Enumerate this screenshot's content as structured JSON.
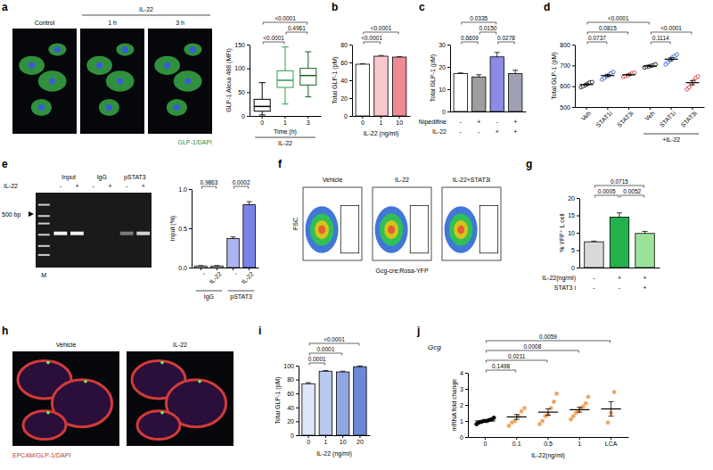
{
  "chart_data": [
    {
      "type": "box",
      "categories": [
        "0",
        "1",
        "3"
      ],
      "x_label": "Time (h)",
      "y_label": "GLP-1 Alexa 488 (MFI)",
      "group_labels": [
        "IL-22"
      ],
      "boxes": [
        {
          "min": 2,
          "q1": 10,
          "median": 20,
          "q3": 35,
          "max": 70
        },
        {
          "min": 25,
          "q1": 60,
          "median": 75,
          "q3": 95,
          "max": 145
        },
        {
          "min": 40,
          "q1": 65,
          "median": 85,
          "q3": 100,
          "max": 135
        }
      ],
      "colors": [
        "#000000",
        "#2e9e4f",
        "#1b5e20"
      ],
      "ylim": [
        0,
        150
      ],
      "yticks": [
        0,
        50,
        100,
        150
      ],
      "annotations": [
        "<0.0001",
        "<0.0001",
        "0.4961"
      ]
    },
    {
      "panel": "b",
      "type": "bar",
      "categories": [
        "0",
        "1",
        "10"
      ],
      "values": [
        58,
        67,
        66
      ],
      "errors": [
        0.5,
        0.8,
        0.6
      ],
      "colors": [
        "#ffffff",
        "#f8c8cc",
        "#ee8a92"
      ],
      "x_label": "IL-22 (ng/ml)",
      "y_label": "Total GLP-1 (pM)",
      "ylim": [
        0,
        80
      ],
      "yticks": [
        0,
        20,
        40,
        60,
        80
      ],
      "annotations": [
        "<0.0001",
        "<0.0001"
      ]
    },
    {
      "panel": "c",
      "type": "bar",
      "categories": [
        null,
        null,
        null,
        null
      ],
      "condition_rows": [
        {
          "label": "Nipedifine",
          "values": [
            "-",
            "+",
            "-",
            "+"
          ]
        },
        {
          "label": "IL-22",
          "values": [
            "-",
            "-",
            "+",
            "+"
          ]
        }
      ],
      "values": [
        17,
        15.5,
        24.5,
        17
      ],
      "errors": [
        0.3,
        1.0,
        2.0,
        1.5
      ],
      "colors": [
        "#ffffff",
        "#9e9e9e",
        "#8c8ce6",
        "#a0a0b4"
      ],
      "y_label": "Total GLP-1 (pM)",
      "ylim": [
        0,
        30
      ],
      "yticks": [
        0,
        10,
        20,
        30
      ],
      "annotations": [
        "0.6609",
        "0.0278",
        "0.0150",
        "0.0335"
      ]
    },
    {
      "panel": "d",
      "type": "dot",
      "marker": "open",
      "categories": [
        "Veh",
        "STAT1i",
        "STAT3i",
        "Veh",
        "STAT1i",
        "STAT3i"
      ],
      "group_labels": [
        "+IL-22"
      ],
      "values": [
        608,
        651,
        655,
        697,
        730,
        617
      ],
      "errors": [
        4,
        5,
        3,
        2,
        7,
        10
      ],
      "points": [
        [
          595,
          600,
          605,
          612,
          618,
          620
        ],
        [
          632,
          640,
          648,
          655,
          662,
          668
        ],
        [
          645,
          648,
          652,
          658,
          662,
          665
        ],
        [
          690,
          693,
          695,
          698,
          701,
          705
        ],
        [
          705,
          715,
          725,
          738,
          745,
          752
        ],
        [
          585,
          595,
          610,
          625,
          640,
          647
        ]
      ],
      "colors": [
        "#000000",
        "#1f4fd1",
        "#d62728",
        "#000000",
        "#1f4fd1",
        "#d62728"
      ],
      "y_label": "Total GLP-1 (pM)",
      "ylim": [
        500,
        800
      ],
      "yticks": [
        500,
        600,
        700,
        800
      ],
      "annotations": [
        "0.0737",
        "0.0815",
        "<0.0001",
        "0.1114",
        "<0.0001"
      ]
    },
    {
      "type": "bar",
      "categories": [
        "-",
        "IL-22",
        "-",
        "IL-22"
      ],
      "group_labels": [
        "IgG",
        "pSTAT3"
      ],
      "values": [
        0.02,
        0.02,
        0.37,
        0.8
      ],
      "errors": [
        0.005,
        0.005,
        0.02,
        0.04
      ],
      "colors": [
        "#ffffff",
        "#ffffff",
        "#aeb4f2",
        "#7b83e8"
      ],
      "y_label": "Input (%)",
      "ylim": [
        0,
        1
      ],
      "yticks": [
        {
          "value": 0,
          "label": "0.0"
        },
        {
          "value": 0.5,
          "label": "0.5"
        },
        {
          "value": 1,
          "label": "1.0"
        }
      ],
      "annotations": [
        "0.9863",
        "0.0002"
      ]
    },
    {
      "panel": "g",
      "type": "bar",
      "categories": [
        null,
        null,
        null
      ],
      "condition_rows": [
        {
          "label": "IL-22(ng/ml)",
          "values": [
            "-",
            "+",
            "+"
          ]
        },
        {
          "label": "STAT3 i",
          "values": [
            "-",
            "-",
            "+"
          ]
        }
      ],
      "values": [
        7.4,
        14.5,
        9.8
      ],
      "errors": [
        0.2,
        1.2,
        0.6
      ],
      "colors": [
        "#d9d9d9",
        "#22b14c",
        "#9be39b"
      ],
      "y_label": "% YFP⁺ L cell",
      "ylim": [
        0,
        20
      ],
      "yticks": [
        0,
        5,
        10,
        15,
        20
      ],
      "annotations": [
        "0.0005",
        "0.0052",
        "0.0715"
      ]
    },
    {
      "panel": "i",
      "type": "bar",
      "categories": [
        "0",
        "1",
        "10",
        "20"
      ],
      "values": [
        74,
        92,
        91,
        98.5
      ],
      "errors": [
        1.5,
        1,
        1,
        1
      ],
      "colors": [
        "#dfe6f7",
        "#b9c8ee",
        "#8fa6e0",
        "#6d89d6"
      ],
      "x_label": "IL-22 (ng/ml)",
      "y_label": "Total GLP-1 (pM)",
      "ylim": [
        0,
        100
      ],
      "yticks": [
        0,
        20,
        40,
        60,
        80,
        100
      ],
      "annotations": [
        "0.0001",
        "0.0001",
        "<0.0001"
      ]
    },
    {
      "panel": "j",
      "type": "dot",
      "marker": "filled",
      "title": "Gcg",
      "categories": [
        "0",
        "0.1",
        "0.5",
        "1",
        "LCA"
      ],
      "x_label": "IL-22(ng/ml)",
      "y_label": "mRNA fold change",
      "values": [
        1.0,
        1.25,
        1.55,
        1.7,
        1.75
      ],
      "errors": [
        0.05,
        0.15,
        0.2,
        0.15,
        0.45
      ],
      "points": [
        [
          0.8,
          0.9,
          0.95,
          1.0,
          1.0,
          1.05,
          1.1,
          1.2
        ],
        [
          0.7,
          0.9,
          1.0,
          1.3,
          1.6,
          1.8
        ],
        [
          0.8,
          1.0,
          1.3,
          1.4,
          1.8,
          2.2,
          2.7
        ],
        [
          1.1,
          1.3,
          1.5,
          1.6,
          1.8,
          1.9,
          2.1,
          2.5
        ],
        [
          0.9,
          1.5,
          2.8
        ]
      ],
      "colors": [
        "#000000",
        "#f4a460",
        "#f4a460",
        "#f4a460",
        "#f4a460"
      ],
      "ylim": [
        0,
        4
      ],
      "yticks": [
        0,
        1,
        2,
        3,
        4
      ],
      "annotations": [
        "0.1498",
        "0.0211",
        "0.0008",
        "0.0059"
      ]
    }
  ],
  "image_panels": [
    {
      "panel": "a",
      "group_label": "IL-22",
      "titles": [
        "Control",
        "1 h",
        "3 h"
      ],
      "caption": "GLP-1/DAPI"
    },
    {
      "panel": "e",
      "headers": [
        "Input",
        "IgG",
        "pSTAT3"
      ],
      "row_label": "IL-22",
      "lane_signs": [
        "-",
        "+",
        "-",
        "+",
        "-",
        "+"
      ],
      "marker_lane": "M",
      "size_label": "500 bp"
    },
    {
      "panel": "f",
      "titles": [
        "Vehicle",
        "IL-22",
        "IL-22+STAT3i"
      ],
      "x_label": "Gcg-cre;Rosa-YFP",
      "y_label": "FSC"
    },
    {
      "panel": "h",
      "titles": [
        "Vehicle",
        "IL-22"
      ],
      "caption": "EPCAM/GLP-1/DAPI"
    }
  ]
}
